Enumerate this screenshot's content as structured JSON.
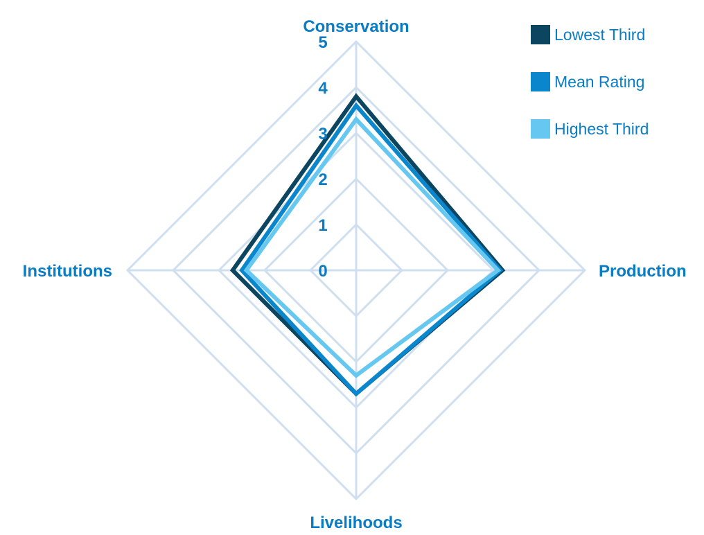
{
  "chart_data": {
    "type": "radar",
    "title": "",
    "axes": [
      "Conservation",
      "Production",
      "Livelihoods",
      "Institutions"
    ],
    "scale": {
      "min": 0,
      "max": 5,
      "ticks": [
        "0",
        "1",
        "2",
        "3",
        "4",
        "5"
      ]
    },
    "grid": true,
    "legend_position": "top-right",
    "series": [
      {
        "name": "Lowest Third",
        "color": "#0b4560",
        "values": [
          3.8,
          3.2,
          2.7,
          2.7
        ]
      },
      {
        "name": "Mean Rating",
        "color": "#0a86cc",
        "values": [
          3.6,
          3.15,
          2.7,
          2.5
        ]
      },
      {
        "name": "Highest Third",
        "color": "#66c8f0",
        "values": [
          3.3,
          3.1,
          2.3,
          2.4
        ]
      }
    ],
    "colors": {
      "grid": "#cfdff0",
      "axis_label": "#0a7cc4",
      "tick_label": "#0a7cc4",
      "legend_text": "#0a7cc4"
    }
  }
}
